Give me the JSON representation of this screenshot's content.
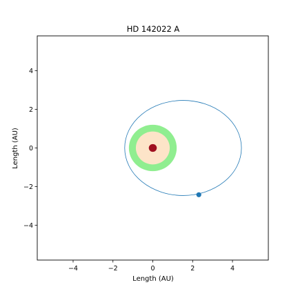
{
  "chart_data": {
    "type": "scatter",
    "title": "HD 142022 A",
    "xlabel": "Length (AU)",
    "ylabel": "Length (AU)",
    "xlim": [
      -5.8,
      5.8
    ],
    "ylim": [
      -5.8,
      5.8
    ],
    "xticks": [
      -4,
      -2,
      0,
      2,
      4
    ],
    "yticks": [
      -4,
      -2,
      0,
      2,
      4
    ],
    "xtick_labels": [
      "−4",
      "−2",
      "0",
      "2",
      "4"
    ],
    "ytick_labels": [
      "−4",
      "−2",
      "0",
      "2",
      "4"
    ],
    "grid": false,
    "legend": false,
    "habitable_zone": {
      "inner_radius": 0.85,
      "outer_radius": 1.2,
      "colors": {
        "inner_fill": "#fde4c8",
        "zone": "#90ee90"
      }
    },
    "star": {
      "x": 0,
      "y": 0,
      "radius": 0.2,
      "color": "#a01020"
    },
    "orbit": {
      "center_x": 1.52,
      "center_y": 0,
      "semi_major": 2.93,
      "semi_minor": 2.46,
      "color": "#1f77b4"
    },
    "planet": {
      "x": 2.31,
      "y": -2.42,
      "color": "#1f77b4"
    }
  }
}
